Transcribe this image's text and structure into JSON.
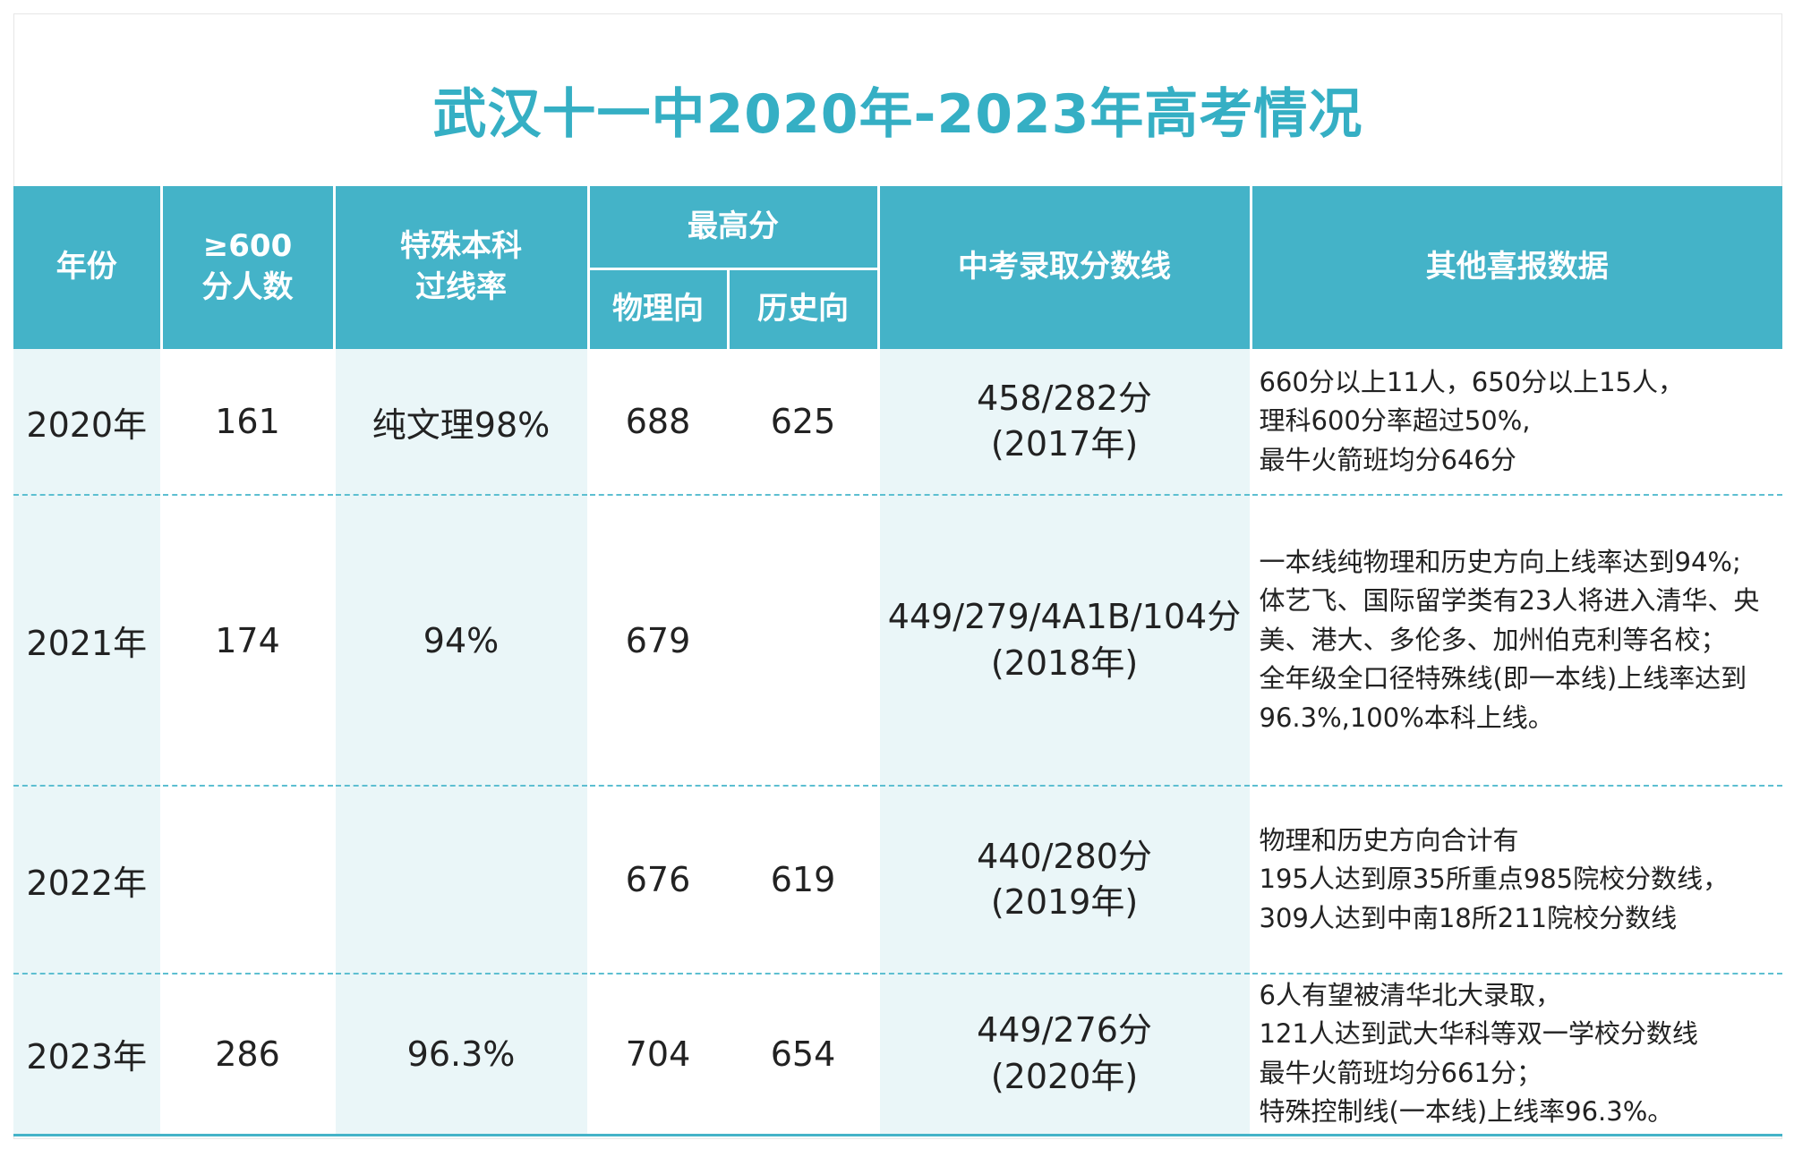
{
  "title": "武汉十一中2020年-2023年高考情况",
  "headers": {
    "year": "年份",
    "count600_line1": "≥600",
    "count600_line2": "分人数",
    "special_line1": "特殊本科",
    "special_line2": "过线率",
    "highest": "最高分",
    "physics": "物理向",
    "history": "历史向",
    "zhongkao": "中考录取分数线",
    "other": "其他喜报数据"
  },
  "rows": [
    {
      "year": "2020年",
      "count600": "161",
      "special": "纯文理98%",
      "physics": "688",
      "history": "625",
      "zhongkao_score": "458/282分",
      "zhongkao_year": "(2017年)",
      "other": [
        "660分以上11人，650分以上15人，",
        "理科600分率超过50%,",
        "最牛火箭班均分646分"
      ]
    },
    {
      "year": "2021年",
      "count600": "174",
      "special": "94%",
      "physics": "679",
      "history": "",
      "zhongkao_score": "449/279/4A1B/104分",
      "zhongkao_year": "(2018年)",
      "other": [
        "一本线纯物理和历史方向上线率达到94%;",
        "体艺飞、国际留学类有23人将进入清华、央",
        "美、港大、多伦多、加州伯克利等名校；",
        "全年级全口径特殊线(即一本线)上线率达到",
        "96.3%,100%本科上线。"
      ]
    },
    {
      "year": "2022年",
      "count600": "",
      "special": "",
      "physics": "676",
      "history": "619",
      "zhongkao_score": "440/280分",
      "zhongkao_year": "(2019年)",
      "other": [
        "物理和历史方向合计有",
        "195人达到原35所重点985院校分数线，",
        "309人达到中南18所211院校分数线"
      ]
    },
    {
      "year": "2023年",
      "count600": "286",
      "special": "96.3%",
      "physics": "704",
      "history": "654",
      "zhongkao_score": "449/276分",
      "zhongkao_year": "(2020年)",
      "other": [
        "6人有望被清华北大录取，",
        "121人达到武大华科等双一学校分数线",
        "最牛火箭班均分661分；",
        "特殊控制线(一本线)上线率96.3%。"
      ]
    }
  ],
  "colors": {
    "accent": "#44b3c8",
    "title": "#35afc4",
    "row_light": "#eaf6f8"
  }
}
